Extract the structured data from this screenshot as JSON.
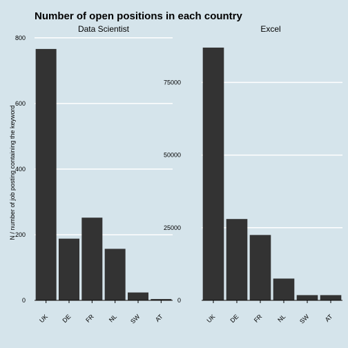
{
  "colors": {
    "background": "#d5e4eb",
    "bar": "#333333",
    "gridline": "#ffffff",
    "axis_line": "#000000"
  },
  "chart_data": {
    "type": "bar",
    "title": "Number of open positions in each country",
    "ylabel": "N / number of job posting containing the keyword",
    "xlabel": "",
    "grid": "horizontal major gridlines",
    "legend": "none",
    "categories": [
      "UK",
      "DE",
      "FR",
      "NL",
      "SW",
      "AT"
    ],
    "facets": [
      {
        "name": "Data Scientist",
        "values": [
          766,
          188,
          252,
          157,
          24,
          4
        ],
        "ylim": [
          0,
          810
        ],
        "yticks": [
          0,
          200,
          400,
          600,
          800
        ],
        "ytick_labels": [
          "0",
          "200",
          "400",
          "600",
          "800"
        ]
      },
      {
        "name": "Excel",
        "values": [
          87000,
          28000,
          22500,
          7500,
          1800,
          1800
        ],
        "ylim": [
          0,
          91500
        ],
        "yticks": [
          0,
          25000,
          50000,
          75000
        ],
        "ytick_labels": [
          "0",
          "25000",
          "50000",
          "75000"
        ]
      }
    ]
  }
}
